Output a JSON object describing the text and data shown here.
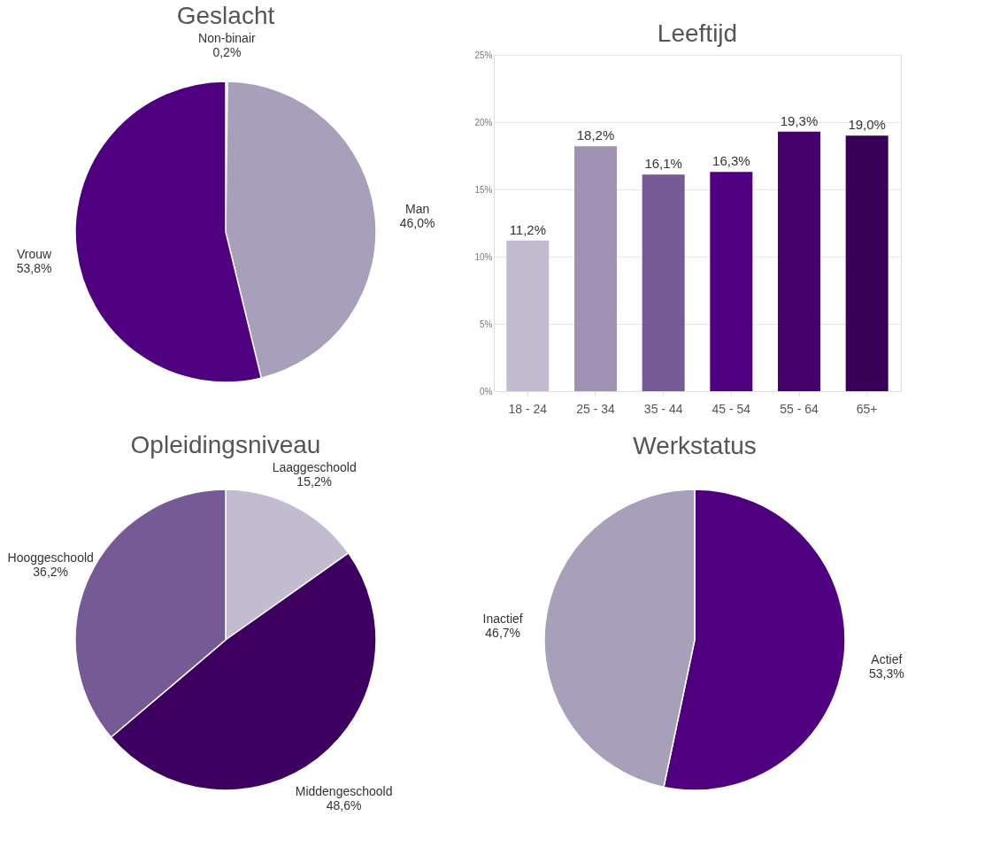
{
  "chart_data": [
    {
      "type": "pie",
      "title": "Geslacht",
      "categories": [
        "Non-binair",
        "Man",
        "Vrouw"
      ],
      "values": [
        0.2,
        46.0,
        53.8
      ],
      "colors": [
        "#c3bcd0",
        "#a89fbb",
        "#4f007f"
      ],
      "value_labels": [
        "0,2%",
        "46,0%",
        "53,8%"
      ]
    },
    {
      "type": "bar",
      "title": "Leeftijd",
      "categories": [
        "18 - 24",
        "25 - 34",
        "35 - 44",
        "45 - 54",
        "55 - 64",
        "65+"
      ],
      "values": [
        11.2,
        18.2,
        16.1,
        16.3,
        19.3,
        19.0
      ],
      "colors": [
        "#c3bcd0",
        "#9f92b4",
        "#765a96",
        "#4f0080",
        "#45006b",
        "#380057"
      ],
      "value_labels": [
        "11,2%",
        "18,2%",
        "16,1%",
        "16,3%",
        "19,3%",
        "19,0%"
      ],
      "ylim": [
        0,
        25
      ],
      "yticks": [
        {
          "value": 0,
          "label": "0%"
        },
        {
          "value": 5,
          "label": "5%"
        },
        {
          "value": 10,
          "label": "10%"
        },
        {
          "value": 15,
          "label": "15%"
        },
        {
          "value": 20,
          "label": "20%"
        },
        {
          "value": 25,
          "label": "25%"
        }
      ],
      "grid": "y"
    },
    {
      "type": "pie",
      "title": "Opleidingsniveau",
      "categories": [
        "Laaggeschoold",
        "Middengeschoold",
        "Hooggeschoold"
      ],
      "values": [
        15.2,
        48.6,
        36.2
      ],
      "colors": [
        "#c3bcd0",
        "#3d0060",
        "#765a96"
      ],
      "value_labels": [
        "15,2%",
        "48,6%",
        "36,2%"
      ]
    },
    {
      "type": "pie",
      "title": "Werkstatus",
      "categories": [
        "Actief",
        "Inactief"
      ],
      "values": [
        53.3,
        46.7
      ],
      "colors": [
        "#4f007f",
        "#a89fbb"
      ],
      "value_labels": [
        "53,3%",
        "46,7%"
      ]
    }
  ]
}
